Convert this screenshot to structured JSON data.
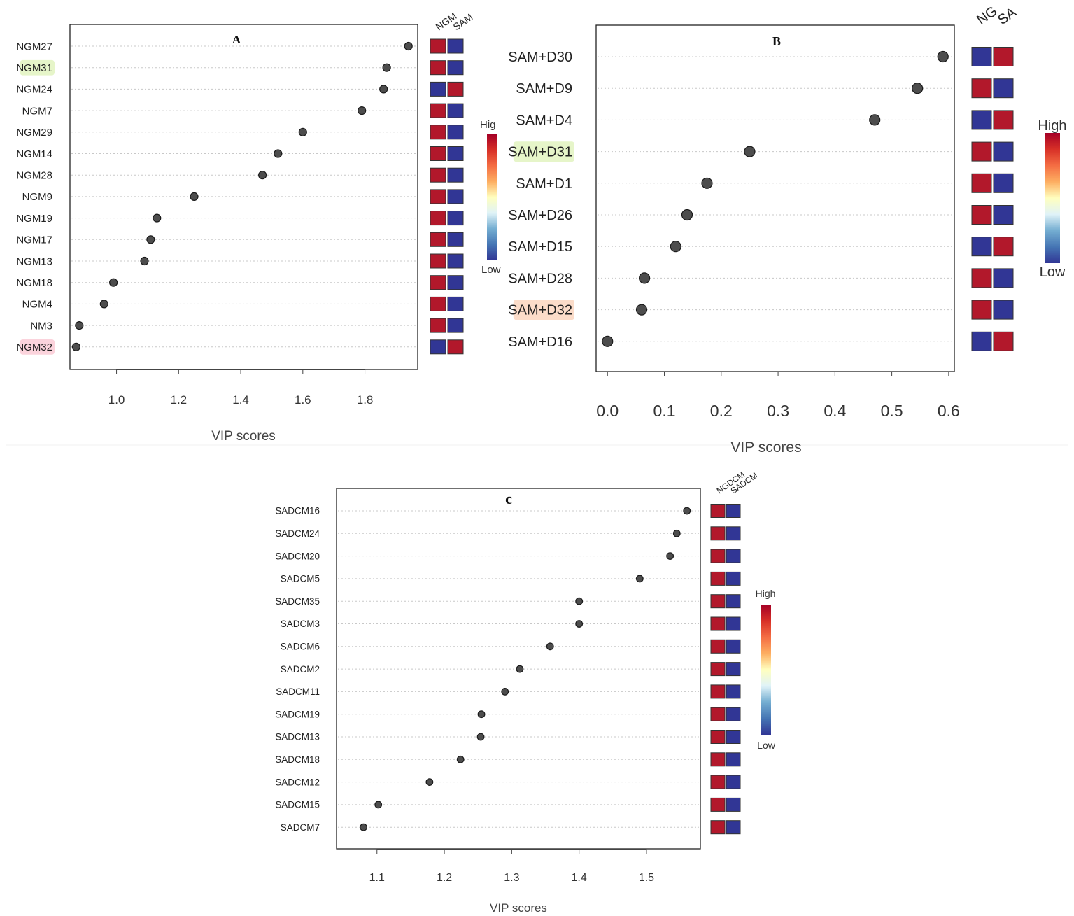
{
  "chart_data": [
    {
      "panel": "A",
      "type": "scatter",
      "title": "A",
      "xlabel": "VIP scores",
      "xlim": [
        0.85,
        1.97
      ],
      "xticks": [
        "1.0",
        "1.2",
        "1.4",
        "1.6",
        "1.8"
      ],
      "groups": [
        "NGM",
        "SAM"
      ],
      "legend": {
        "high": "Hig",
        "low": "Low"
      },
      "points": [
        {
          "label": "NGM27",
          "vip": 1.94,
          "cells": [
            "high",
            "low"
          ],
          "highlight": ""
        },
        {
          "label": "NGM31",
          "vip": 1.87,
          "cells": [
            "high",
            "low"
          ],
          "highlight": "#e6f5c9"
        },
        {
          "label": "NGM24",
          "vip": 1.86,
          "cells": [
            "low",
            "high"
          ],
          "highlight": ""
        },
        {
          "label": "NGM7",
          "vip": 1.79,
          "cells": [
            "high",
            "low"
          ],
          "highlight": ""
        },
        {
          "label": "NGM29",
          "vip": 1.6,
          "cells": [
            "high",
            "low"
          ],
          "highlight": ""
        },
        {
          "label": "NGM14",
          "vip": 1.52,
          "cells": [
            "high",
            "low"
          ],
          "highlight": ""
        },
        {
          "label": "NGM28",
          "vip": 1.47,
          "cells": [
            "high",
            "low"
          ],
          "highlight": ""
        },
        {
          "label": "NGM9",
          "vip": 1.25,
          "cells": [
            "high",
            "low"
          ],
          "highlight": ""
        },
        {
          "label": "NGM19",
          "vip": 1.13,
          "cells": [
            "high",
            "low"
          ],
          "highlight": ""
        },
        {
          "label": "NGM17",
          "vip": 1.11,
          "cells": [
            "high",
            "low"
          ],
          "highlight": ""
        },
        {
          "label": "NGM13",
          "vip": 1.09,
          "cells": [
            "high",
            "low"
          ],
          "highlight": ""
        },
        {
          "label": "NGM18",
          "vip": 0.99,
          "cells": [
            "high",
            "low"
          ],
          "highlight": ""
        },
        {
          "label": "NGM4",
          "vip": 0.96,
          "cells": [
            "high",
            "low"
          ],
          "highlight": ""
        },
        {
          "label": "NM3",
          "vip": 0.88,
          "cells": [
            "high",
            "low"
          ],
          "highlight": ""
        },
        {
          "label": "NGM32",
          "vip": 0.87,
          "cells": [
            "low",
            "high"
          ],
          "highlight": "#fbd3dc"
        }
      ]
    },
    {
      "panel": "B",
      "type": "scatter",
      "title": "B",
      "xlabel": "VIP scores",
      "xlim": [
        -0.02,
        0.61
      ],
      "xticks": [
        "0.0",
        "0.1",
        "0.2",
        "0.3",
        "0.4",
        "0.5",
        "0.6"
      ],
      "groups": [
        "NG",
        "SA"
      ],
      "legend": {
        "high": "High",
        "low": "Low"
      },
      "points": [
        {
          "label": "SAM+D30",
          "vip": 0.59,
          "cells": [
            "low",
            "high"
          ],
          "highlight": ""
        },
        {
          "label": "SAM+D9",
          "vip": 0.545,
          "cells": [
            "high",
            "low"
          ],
          "highlight": ""
        },
        {
          "label": "SAM+D4",
          "vip": 0.47,
          "cells": [
            "low",
            "high"
          ],
          "highlight": ""
        },
        {
          "label": "SAM+D31",
          "vip": 0.25,
          "cells": [
            "high",
            "low"
          ],
          "highlight": "#e6f5c9"
        },
        {
          "label": "SAM+D1",
          "vip": 0.175,
          "cells": [
            "high",
            "low"
          ],
          "highlight": ""
        },
        {
          "label": "SAM+D26",
          "vip": 0.14,
          "cells": [
            "high",
            "low"
          ],
          "highlight": ""
        },
        {
          "label": "SAM+D15",
          "vip": 0.12,
          "cells": [
            "low",
            "high"
          ],
          "highlight": ""
        },
        {
          "label": "SAM+D28",
          "vip": 0.065,
          "cells": [
            "high",
            "low"
          ],
          "highlight": ""
        },
        {
          "label": "SAM+D32",
          "vip": 0.06,
          "cells": [
            "high",
            "low"
          ],
          "highlight": "#fbdcc9"
        },
        {
          "label": "SAM+D16",
          "vip": 0.0,
          "cells": [
            "low",
            "high"
          ],
          "highlight": ""
        }
      ]
    },
    {
      "panel": "C",
      "type": "scatter",
      "title": "c",
      "xlabel": "VIP scores",
      "xlim": [
        1.04,
        1.58
      ],
      "xticks": [
        "1.1",
        "1.2",
        "1.3",
        "1.4",
        "1.5"
      ],
      "groups": [
        "NGDCM",
        "SADCM"
      ],
      "legend": {
        "high": "High",
        "low": "Low"
      },
      "points": [
        {
          "label": "SADCM16",
          "vip": 1.56,
          "cells": [
            "high",
            "low"
          ],
          "highlight": ""
        },
        {
          "label": "SADCM24",
          "vip": 1.545,
          "cells": [
            "high",
            "low"
          ],
          "highlight": ""
        },
        {
          "label": "SADCM20",
          "vip": 1.535,
          "cells": [
            "high",
            "low"
          ],
          "highlight": ""
        },
        {
          "label": "SADCM5",
          "vip": 1.49,
          "cells": [
            "high",
            "low"
          ],
          "highlight": ""
        },
        {
          "label": "SADCM35",
          "vip": 1.4,
          "cells": [
            "high",
            "low"
          ],
          "highlight": ""
        },
        {
          "label": "SADCM3",
          "vip": 1.4,
          "cells": [
            "high",
            "low"
          ],
          "highlight": ""
        },
        {
          "label": "SADCM6",
          "vip": 1.357,
          "cells": [
            "high",
            "low"
          ],
          "highlight": ""
        },
        {
          "label": "SADCM2",
          "vip": 1.312,
          "cells": [
            "high",
            "low"
          ],
          "highlight": ""
        },
        {
          "label": "SADCM11",
          "vip": 1.29,
          "cells": [
            "high",
            "low"
          ],
          "highlight": ""
        },
        {
          "label": "SADCM19",
          "vip": 1.255,
          "cells": [
            "high",
            "low"
          ],
          "highlight": ""
        },
        {
          "label": "SADCM13",
          "vip": 1.254,
          "cells": [
            "high",
            "low"
          ],
          "highlight": ""
        },
        {
          "label": "SADCM18",
          "vip": 1.224,
          "cells": [
            "high",
            "low"
          ],
          "highlight": ""
        },
        {
          "label": "SADCM12",
          "vip": 1.178,
          "cells": [
            "high",
            "low"
          ],
          "highlight": ""
        },
        {
          "label": "SADCM15",
          "vip": 1.102,
          "cells": [
            "high",
            "low"
          ],
          "highlight": ""
        },
        {
          "label": "SADCM7",
          "vip": 1.08,
          "cells": [
            "high",
            "low"
          ],
          "highlight": ""
        }
      ]
    }
  ],
  "colors": {
    "high": "#b2182b",
    "low": "#313695",
    "dot": "#4d4d4d",
    "grid": "#c8c8c8",
    "gradient": [
      "#313695",
      "#4575b4",
      "#74add1",
      "#e0f3f8",
      "#ffffbf",
      "#fdae61",
      "#f46d43",
      "#d73027",
      "#a50026"
    ]
  }
}
